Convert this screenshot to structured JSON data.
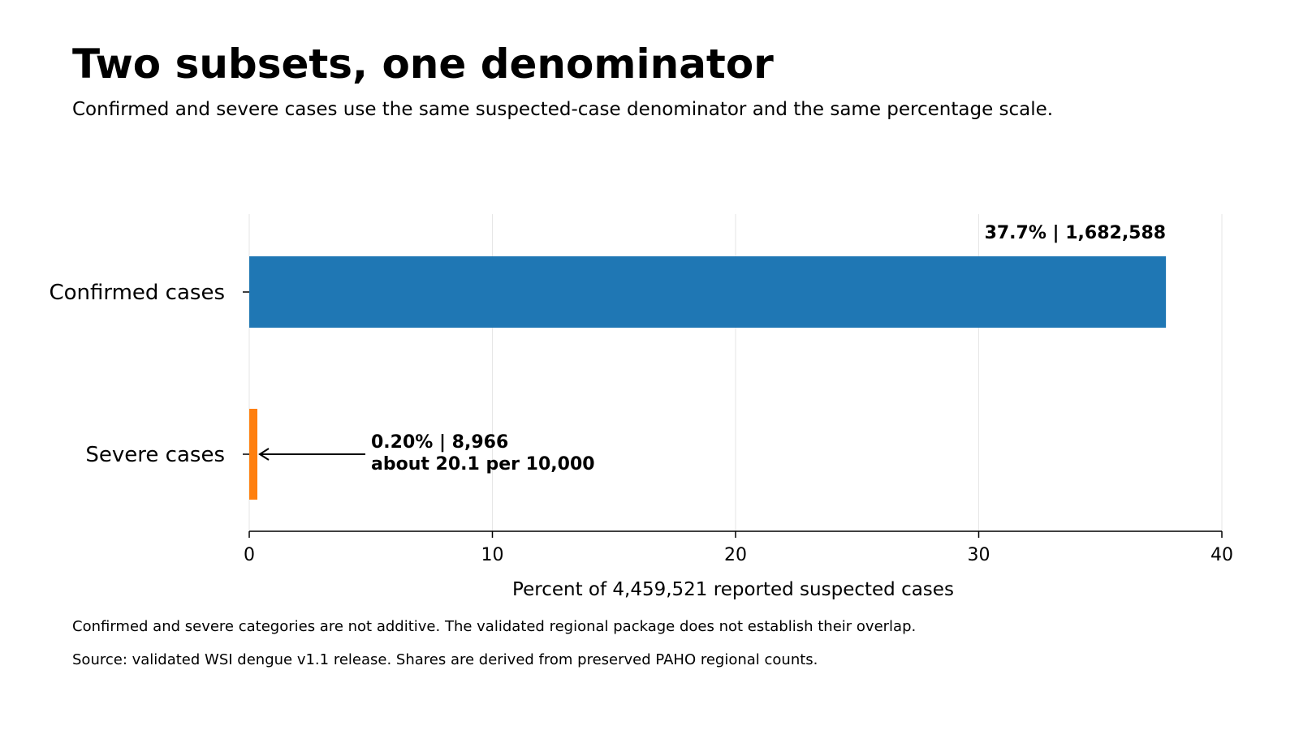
{
  "chart_data": {
    "type": "bar",
    "orientation": "horizontal",
    "title": "Two subsets, one denominator",
    "subtitle": "Confirmed and severe cases use the same suspected-case denominator and the same percentage scale.",
    "xlabel": "Percent of 4,459,521 reported suspected cases",
    "ylabel": "",
    "xlim": [
      0,
      40
    ],
    "xticks": [
      0,
      10,
      20,
      30,
      40
    ],
    "xtick_labels": [
      "0",
      "10",
      "20",
      "30",
      "40"
    ],
    "grid": "vertical",
    "categories": [
      "Confirmed cases",
      "Severe cases"
    ],
    "values": [
      37.7,
      0.2
    ],
    "colors": [
      "#1f77b4",
      "#ff7f0e"
    ],
    "data_labels": [
      {
        "line1": "37.7%  |  1,682,588"
      },
      {
        "line1": "0.20%  |  8,966",
        "line2": "about 20.1 per 10,000"
      }
    ],
    "notes": [
      "Confirmed and severe categories are not additive. The validated regional package does not establish their overlap.",
      "Source: validated WSI dengue v1.1 release. Shares are derived from preserved PAHO regional counts."
    ]
  }
}
